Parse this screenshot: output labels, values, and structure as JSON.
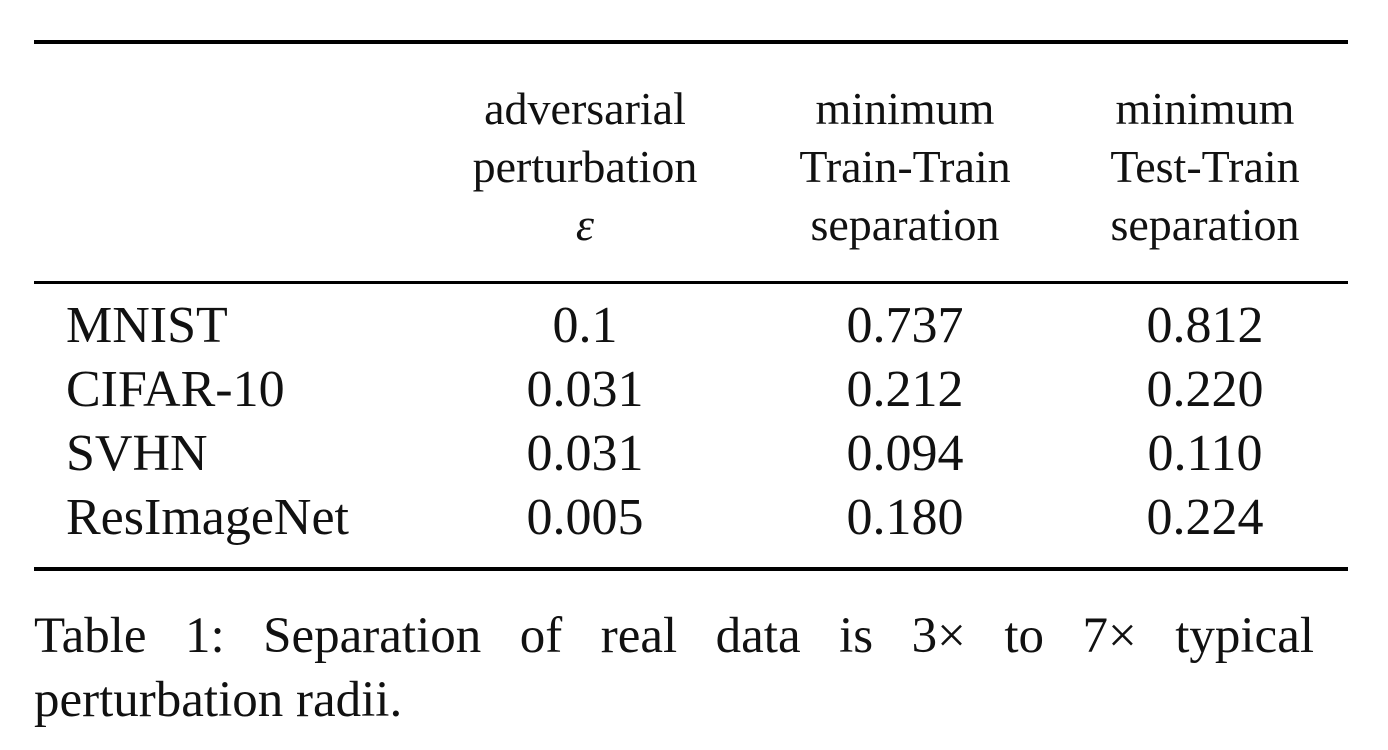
{
  "table": {
    "headers": {
      "epsilon": [
        "adversarial",
        "perturbation",
        "ε"
      ],
      "train_train": [
        "minimum",
        "Train-Train",
        "separation"
      ],
      "test_train": [
        "minimum",
        "Test-Train",
        "separation"
      ]
    },
    "rows": [
      {
        "dataset": "MNIST",
        "epsilon": "0.1",
        "train_train": "0.737",
        "test_train": "0.812"
      },
      {
        "dataset": "CIFAR-10",
        "epsilon": "0.031",
        "train_train": "0.212",
        "test_train": "0.220"
      },
      {
        "dataset": "SVHN",
        "epsilon": "0.031",
        "train_train": "0.094",
        "test_train": "0.110"
      },
      {
        "dataset": "ResImageNet",
        "epsilon": "0.005",
        "train_train": "0.180",
        "test_train": "0.224"
      }
    ]
  },
  "caption": "Table 1: Separation of real data is 3× to 7× typical perturbation radii."
}
